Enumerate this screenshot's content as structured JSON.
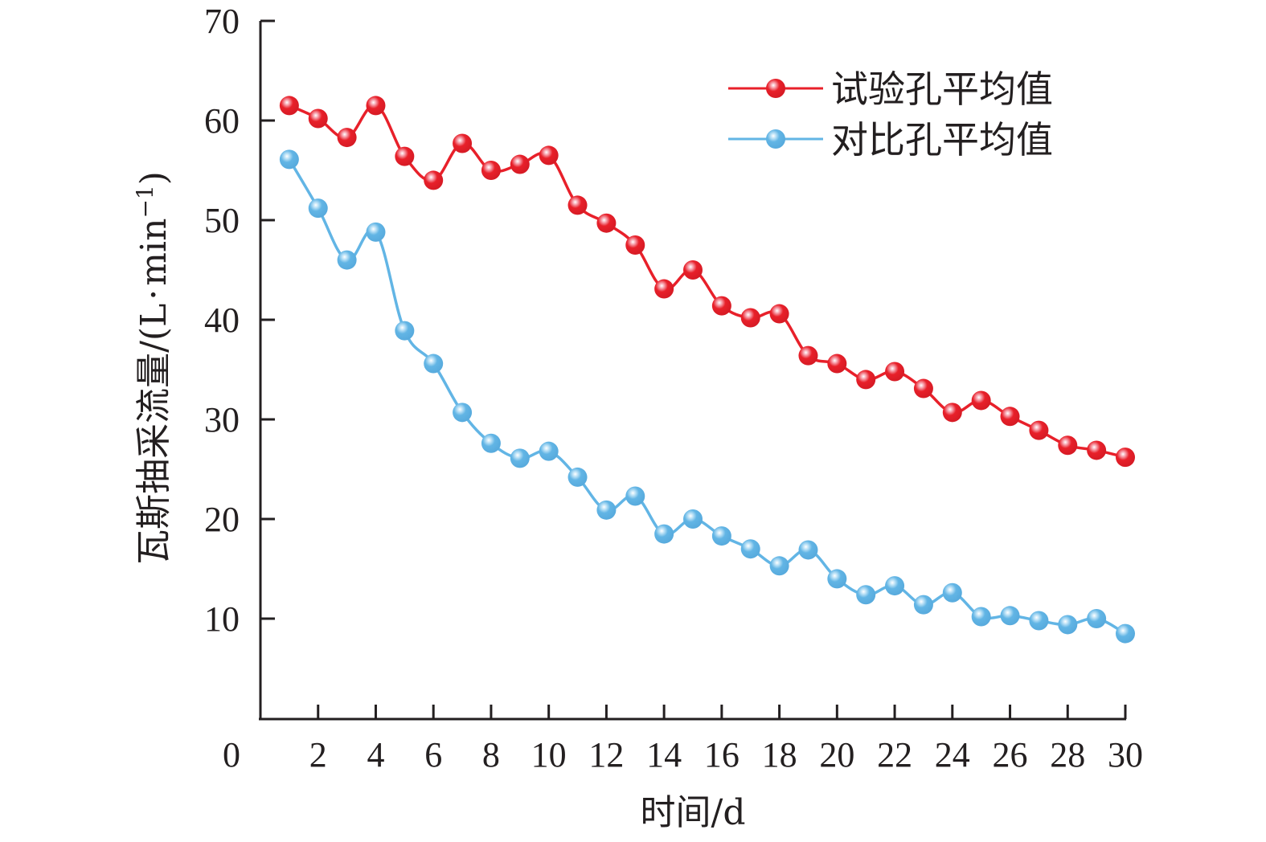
{
  "chart_data": {
    "type": "line",
    "title": "",
    "xlabel": "时间/d",
    "ylabel": "瓦斯抽采流量/(L·min⁻¹)",
    "ylabel_parts": {
      "main": "瓦斯抽采流量/(L",
      "dot": "·",
      "unit": "min",
      "sup": "−1",
      "close": ")"
    },
    "xlim": [
      0,
      30
    ],
    "ylim": [
      0,
      70
    ],
    "x_ticks": [
      2,
      4,
      6,
      8,
      10,
      12,
      14,
      16,
      18,
      20,
      22,
      24,
      26,
      28,
      30
    ],
    "x_tick_labels": [
      "2",
      "4",
      "6",
      "8",
      "10",
      "12",
      "14",
      "16",
      "18",
      "20",
      "22",
      "24",
      "26",
      "28",
      "30"
    ],
    "y_ticks": [
      10,
      20,
      30,
      40,
      50,
      60,
      70
    ],
    "y_tick_labels": [
      "10",
      "20",
      "30",
      "40",
      "50",
      "60",
      "70"
    ],
    "origin_label": "0",
    "grid": false,
    "legend_position": "top-right",
    "x": [
      1,
      2,
      3,
      4,
      5,
      6,
      7,
      8,
      9,
      10,
      11,
      12,
      13,
      14,
      15,
      16,
      17,
      18,
      19,
      20,
      21,
      22,
      23,
      24,
      25,
      26,
      27,
      28,
      29,
      30
    ],
    "series": [
      {
        "name": "试验孔平均值",
        "color": "#e8202a",
        "values": [
          61.5,
          60.2,
          58.3,
          61.5,
          56.4,
          54.0,
          57.7,
          55.0,
          55.6,
          56.5,
          51.5,
          49.7,
          47.5,
          43.1,
          45.0,
          41.4,
          40.2,
          40.6,
          36.4,
          35.6,
          34.0,
          34.8,
          33.1,
          30.7,
          31.9,
          30.3,
          28.9,
          27.4,
          26.9,
          26.2
        ]
      },
      {
        "name": "对比孔平均值",
        "color": "#62b5e5",
        "values": [
          56.1,
          51.2,
          46.0,
          48.8,
          38.9,
          35.6,
          30.7,
          27.6,
          26.1,
          26.8,
          24.2,
          20.9,
          22.3,
          18.5,
          20.0,
          18.3,
          17.0,
          15.3,
          16.9,
          14.0,
          12.4,
          13.3,
          11.4,
          12.6,
          10.2,
          10.3,
          9.8,
          9.4,
          10.0,
          8.5
        ]
      }
    ]
  }
}
